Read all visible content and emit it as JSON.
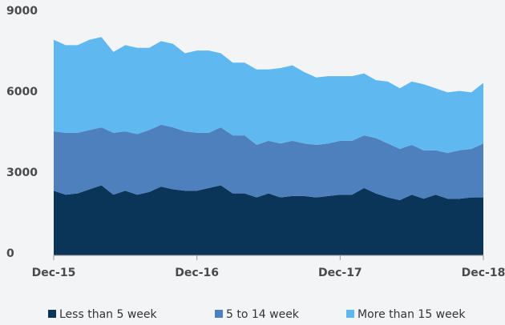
{
  "chart_data": {
    "type": "stacked-area",
    "categories": [
      "Dec-15",
      null,
      null,
      null,
      null,
      null,
      null,
      null,
      null,
      null,
      null,
      null,
      "Dec-16",
      null,
      null,
      null,
      null,
      null,
      null,
      null,
      null,
      null,
      null,
      null,
      "Dec-17",
      null,
      null,
      null,
      null,
      null,
      null,
      null,
      null,
      null,
      null,
      null,
      "Dec-18"
    ],
    "series": [
      {
        "name": "Less than 5 week",
        "color": "#0b3558",
        "values": [
          2400,
          2250,
          2300,
          2450,
          2600,
          2250,
          2400,
          2250,
          2350,
          2550,
          2450,
          2400,
          2400,
          2500,
          2600,
          2300,
          2300,
          2150,
          2300,
          2150,
          2200,
          2200,
          2150,
          2200,
          2250,
          2250,
          2500,
          2300,
          2150,
          2050,
          2250,
          2100,
          2250,
          2100,
          2100,
          2150,
          2150
        ]
      },
      {
        "name": "5 to 14 week",
        "color": "#4d80bd",
        "values": [
          2200,
          2300,
          2250,
          2200,
          2150,
          2300,
          2200,
          2250,
          2300,
          2300,
          2300,
          2200,
          2150,
          2050,
          2150,
          2150,
          2150,
          1950,
          1950,
          2000,
          2050,
          1950,
          1950,
          1950,
          2000,
          2000,
          1950,
          2050,
          2000,
          1900,
          1850,
          1800,
          1650,
          1700,
          1800,
          1800,
          2000
        ]
      },
      {
        "name": "More than 15 week",
        "color": "#5fb9f0",
        "values": [
          3400,
          3250,
          3250,
          3350,
          3350,
          3000,
          3200,
          3200,
          3050,
          3100,
          3100,
          2900,
          3050,
          3050,
          2750,
          2700,
          2700,
          2800,
          2650,
          2800,
          2800,
          2650,
          2500,
          2500,
          2400,
          2400,
          2300,
          2150,
          2300,
          2250,
          2350,
          2450,
          2300,
          2250,
          2200,
          2100,
          2250
        ]
      }
    ],
    "ylim": [
      0,
      9000
    ],
    "yticks": [
      0,
      3000,
      6000,
      9000
    ],
    "grid": false,
    "legend": "bottom"
  }
}
